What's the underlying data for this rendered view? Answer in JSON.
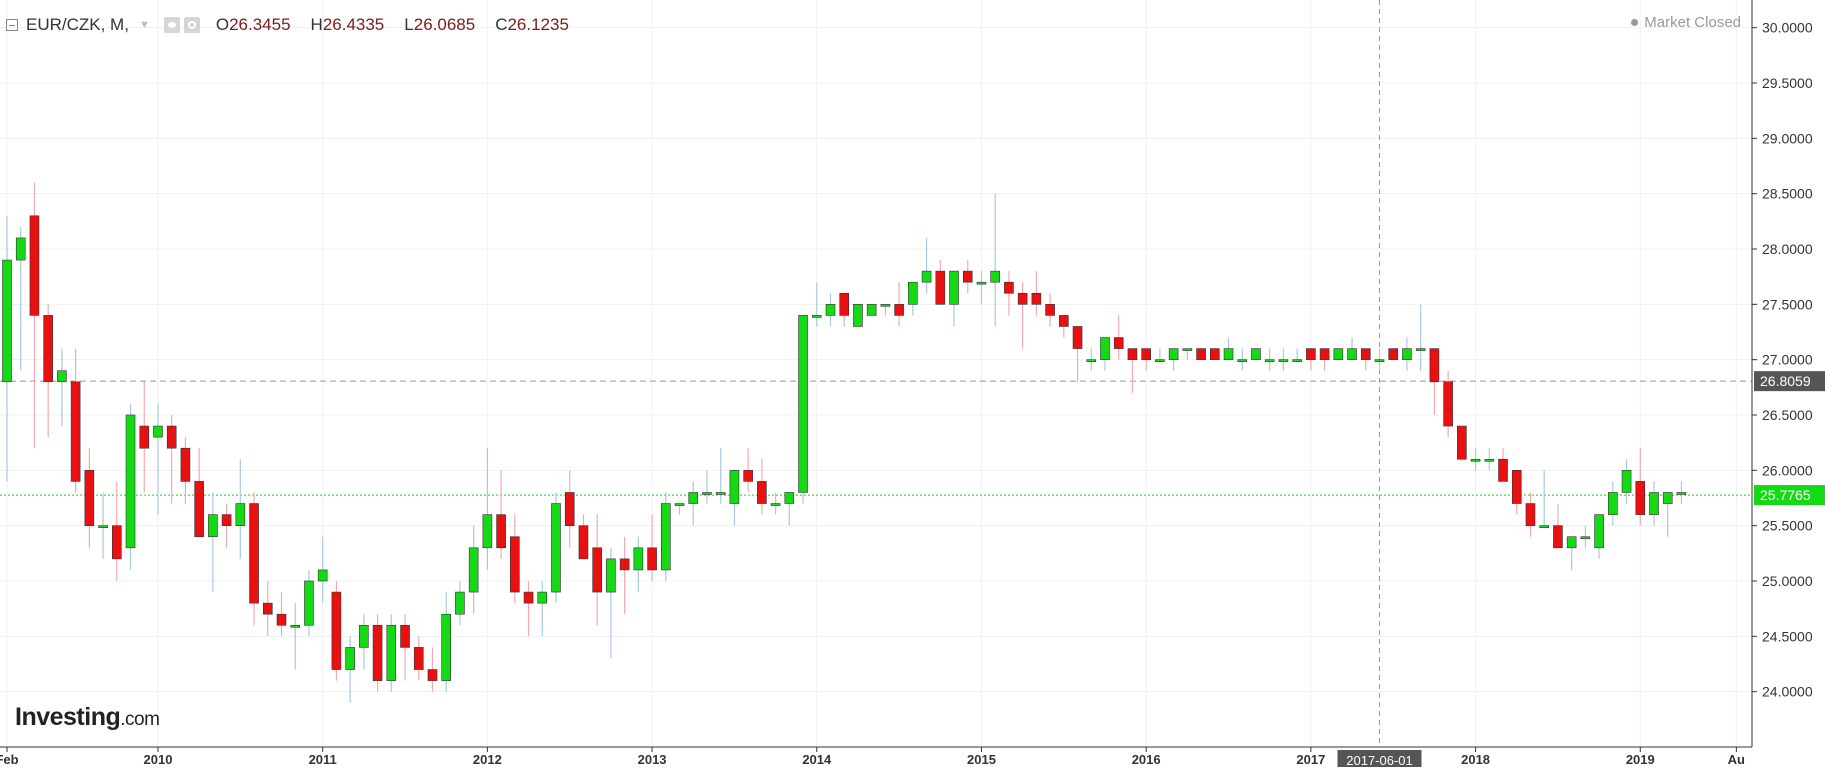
{
  "legend": {
    "symbol": "EUR/CZK, M,",
    "open_label": "O",
    "open_value": "26.3455",
    "high_label": "H",
    "high_value": "26.4335",
    "low_label": "L",
    "low_value": "26.0685",
    "close_label": "C",
    "close_value": "26.1235"
  },
  "market_status": "Market Closed",
  "logo": {
    "main": "Investing",
    "suffix": ".com"
  },
  "colors": {
    "up": "#16d916",
    "down": "#e81010",
    "up_wick": "#a9c8e6",
    "down_wick": "#f4a9b0",
    "current_price": "#16d916",
    "marker_price": "#555555",
    "grid": "#eef1f5",
    "axis": "#333333"
  },
  "chart_data": {
    "type": "candlestick",
    "timeframe": "monthly",
    "ylim": [
      23.5,
      30.25
    ],
    "y_ticks": [
      "24.0000",
      "24.5000",
      "25.0000",
      "25.5000",
      "26.0000",
      "26.5000",
      "27.0000",
      "27.5000",
      "28.0000",
      "28.5000",
      "29.0000",
      "29.5000",
      "30.0000"
    ],
    "x_labels": [
      "Feb",
      "2010",
      "2011",
      "2012",
      "2013",
      "2014",
      "2015",
      "2016",
      "2017",
      "2018",
      "2019",
      "Au"
    ],
    "start_month": "2009-02",
    "current_price": {
      "value": 25.7765,
      "label": "25.7765"
    },
    "marker_price": {
      "value": 26.8059,
      "label": "26.8059"
    },
    "crosshair": {
      "label": "2017-06-01"
    },
    "candles": [
      [
        26.8,
        28.3,
        25.9,
        27.9
      ],
      [
        27.9,
        28.2,
        26.9,
        28.1
      ],
      [
        28.3,
        28.6,
        26.2,
        27.4
      ],
      [
        27.4,
        27.5,
        26.3,
        26.8
      ],
      [
        26.8,
        27.1,
        26.4,
        26.9
      ],
      [
        26.8,
        27.1,
        25.8,
        25.9
      ],
      [
        26.0,
        26.2,
        25.3,
        25.5
      ],
      [
        25.5,
        25.8,
        25.2,
        25.5
      ],
      [
        25.5,
        25.9,
        25.0,
        25.2
      ],
      [
        25.3,
        26.6,
        25.1,
        26.5
      ],
      [
        26.4,
        26.8,
        25.8,
        26.2
      ],
      [
        26.3,
        26.6,
        25.6,
        26.4
      ],
      [
        26.4,
        26.5,
        25.7,
        26.2
      ],
      [
        26.2,
        26.3,
        25.7,
        25.9
      ],
      [
        25.9,
        26.2,
        25.4,
        25.4
      ],
      [
        25.4,
        25.8,
        24.9,
        25.6
      ],
      [
        25.6,
        25.7,
        25.3,
        25.5
      ],
      [
        25.5,
        26.1,
        25.2,
        25.7
      ],
      [
        25.7,
        25.8,
        24.6,
        24.8
      ],
      [
        24.8,
        25.0,
        24.5,
        24.7
      ],
      [
        24.7,
        24.9,
        24.5,
        24.6
      ],
      [
        24.6,
        24.8,
        24.2,
        24.6
      ],
      [
        24.6,
        25.1,
        24.5,
        25.0
      ],
      [
        25.0,
        25.4,
        24.8,
        25.1
      ],
      [
        24.9,
        25.0,
        24.1,
        24.2
      ],
      [
        24.2,
        24.5,
        23.9,
        24.4
      ],
      [
        24.4,
        24.7,
        24.2,
        24.6
      ],
      [
        24.6,
        24.7,
        24.0,
        24.1
      ],
      [
        24.1,
        24.7,
        24.0,
        24.6
      ],
      [
        24.6,
        24.7,
        24.1,
        24.4
      ],
      [
        24.4,
        24.5,
        24.1,
        24.2
      ],
      [
        24.2,
        24.4,
        24.0,
        24.1
      ],
      [
        24.1,
        24.9,
        24.0,
        24.7
      ],
      [
        24.7,
        25.0,
        24.6,
        24.9
      ],
      [
        24.9,
        25.5,
        24.7,
        25.3
      ],
      [
        25.3,
        26.2,
        25.1,
        25.6
      ],
      [
        25.6,
        26.0,
        25.2,
        25.3
      ],
      [
        25.4,
        25.6,
        24.8,
        24.9
      ],
      [
        24.9,
        25.0,
        24.5,
        24.8
      ],
      [
        24.8,
        25.0,
        24.5,
        24.9
      ],
      [
        24.9,
        25.8,
        24.8,
        25.7
      ],
      [
        25.8,
        26.0,
        25.3,
        25.5
      ],
      [
        25.5,
        25.6,
        25.2,
        25.2
      ],
      [
        25.3,
        25.6,
        24.6,
        24.9
      ],
      [
        24.9,
        25.3,
        24.3,
        25.2
      ],
      [
        25.2,
        25.4,
        24.7,
        25.1
      ],
      [
        25.1,
        25.4,
        24.9,
        25.3
      ],
      [
        25.3,
        25.6,
        25.0,
        25.1
      ],
      [
        25.1,
        25.8,
        25.0,
        25.7
      ],
      [
        25.7,
        25.7,
        25.6,
        25.7
      ],
      [
        25.7,
        25.9,
        25.5,
        25.8
      ],
      [
        25.8,
        26.0,
        25.7,
        25.8
      ],
      [
        25.8,
        26.2,
        25.7,
        25.8
      ],
      [
        25.7,
        26.0,
        25.5,
        26.0
      ],
      [
        26.0,
        26.2,
        25.8,
        25.9
      ],
      [
        25.9,
        26.1,
        25.6,
        25.7
      ],
      [
        25.7,
        25.8,
        25.6,
        25.7
      ],
      [
        25.7,
        25.8,
        25.5,
        25.8
      ],
      [
        25.8,
        27.4,
        25.7,
        27.4
      ],
      [
        27.4,
        27.7,
        27.3,
        27.4
      ],
      [
        27.4,
        27.6,
        27.3,
        27.5
      ],
      [
        27.6,
        27.6,
        27.3,
        27.4
      ],
      [
        27.3,
        27.5,
        27.3,
        27.5
      ],
      [
        27.4,
        27.5,
        27.4,
        27.5
      ],
      [
        27.5,
        27.5,
        27.4,
        27.5
      ],
      [
        27.5,
        27.7,
        27.3,
        27.4
      ],
      [
        27.5,
        27.7,
        27.4,
        27.7
      ],
      [
        27.7,
        28.1,
        27.6,
        27.8
      ],
      [
        27.8,
        27.9,
        27.5,
        27.5
      ],
      [
        27.5,
        27.8,
        27.3,
        27.8
      ],
      [
        27.8,
        27.9,
        27.6,
        27.7
      ],
      [
        27.7,
        27.8,
        27.5,
        27.7
      ],
      [
        27.7,
        28.5,
        27.3,
        27.8
      ],
      [
        27.7,
        27.8,
        27.4,
        27.6
      ],
      [
        27.6,
        27.7,
        27.1,
        27.5
      ],
      [
        27.6,
        27.8,
        27.4,
        27.5
      ],
      [
        27.5,
        27.6,
        27.3,
        27.4
      ],
      [
        27.4,
        27.4,
        27.2,
        27.3
      ],
      [
        27.3,
        27.3,
        26.8,
        27.1
      ],
      [
        27.0,
        27.1,
        26.9,
        27.0
      ],
      [
        27.0,
        27.2,
        26.9,
        27.2
      ],
      [
        27.2,
        27.4,
        27.0,
        27.1
      ],
      [
        27.1,
        27.1,
        26.7,
        27.0
      ],
      [
        27.1,
        27.1,
        26.9,
        27.0
      ],
      [
        27.0,
        27.1,
        27.0,
        27.0
      ],
      [
        27.0,
        27.1,
        26.9,
        27.1
      ],
      [
        27.1,
        27.1,
        27.0,
        27.1
      ],
      [
        27.1,
        27.1,
        27.0,
        27.0
      ],
      [
        27.1,
        27.1,
        27.0,
        27.0
      ],
      [
        27.0,
        27.2,
        27.0,
        27.1
      ],
      [
        27.0,
        27.1,
        26.9,
        27.0
      ],
      [
        27.0,
        27.1,
        27.0,
        27.1
      ],
      [
        27.0,
        27.1,
        26.9,
        27.0
      ],
      [
        27.0,
        27.1,
        26.9,
        27.0
      ],
      [
        27.0,
        27.1,
        27.0,
        27.0
      ],
      [
        27.1,
        27.1,
        26.9,
        27.0
      ],
      [
        27.1,
        27.1,
        26.9,
        27.0
      ],
      [
        27.0,
        27.1,
        27.0,
        27.1
      ],
      [
        27.0,
        27.2,
        27.0,
        27.1
      ],
      [
        27.1,
        27.1,
        26.9,
        27.0
      ],
      [
        27.0,
        27.1,
        26.9,
        27.0
      ],
      [
        27.1,
        27.1,
        27.0,
        27.0
      ],
      [
        27.0,
        27.2,
        26.9,
        27.1
      ],
      [
        27.1,
        27.5,
        26.9,
        27.1
      ],
      [
        27.1,
        27.1,
        26.5,
        26.8
      ],
      [
        26.8,
        26.9,
        26.3,
        26.4
      ],
      [
        26.4,
        26.4,
        26.1,
        26.1
      ],
      [
        26.1,
        26.2,
        26.0,
        26.1
      ],
      [
        26.1,
        26.2,
        26.0,
        26.1
      ],
      [
        26.1,
        26.2,
        25.9,
        25.9
      ],
      [
        26.0,
        26.0,
        25.6,
        25.7
      ],
      [
        25.7,
        25.8,
        25.4,
        25.5
      ],
      [
        25.5,
        26.0,
        25.5,
        25.5
      ],
      [
        25.5,
        25.7,
        25.3,
        25.3
      ],
      [
        25.3,
        25.4,
        25.1,
        25.4
      ],
      [
        25.4,
        25.5,
        25.3,
        25.4
      ],
      [
        25.3,
        25.6,
        25.2,
        25.6
      ],
      [
        25.6,
        25.9,
        25.5,
        25.8
      ],
      [
        25.8,
        26.1,
        25.7,
        26.0
      ],
      [
        25.9,
        26.2,
        25.5,
        25.6
      ],
      [
        25.6,
        25.9,
        25.5,
        25.8
      ],
      [
        25.7,
        25.8,
        25.4,
        25.8
      ],
      [
        25.8,
        25.9,
        25.7,
        25.8
      ]
    ]
  }
}
